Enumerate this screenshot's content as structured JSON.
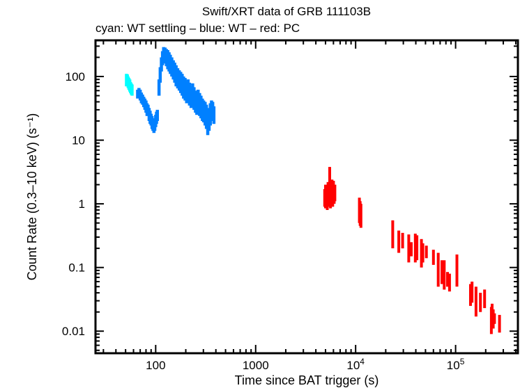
{
  "chart_data": {
    "type": "scatter",
    "title": "Swift/XRT data of GRB 111103B",
    "subtitle": "cyan: WT settling – blue: WT – red: PC",
    "xlabel": "Time since BAT trigger (s)",
    "ylabel": "Count Rate (0.3–10 keV) (s⁻¹)",
    "xscale": "log",
    "yscale": "log",
    "xlim": [
      25,
      420000
    ],
    "ylim": [
      0.0045,
      370
    ],
    "grid": false,
    "legend": "none (series described in subtitle)",
    "x_ticks": [
      {
        "value": 100,
        "label": "100"
      },
      {
        "value": 1000,
        "label": "1000"
      },
      {
        "value": 10000,
        "label": "10",
        "sup": "4"
      },
      {
        "value": 100000,
        "label": "10",
        "sup": "5"
      }
    ],
    "y_ticks": [
      {
        "value": 100,
        "label": "100"
      },
      {
        "value": 10,
        "label": "10"
      },
      {
        "value": 1,
        "label": "1"
      },
      {
        "value": 0.1,
        "label": "0.1"
      },
      {
        "value": 0.01,
        "label": "0.01"
      }
    ],
    "series": [
      {
        "name": "WT settling",
        "color": "#00ffff",
        "points": [
          {
            "t": 51,
            "lo": 70,
            "hi": 110
          },
          {
            "t": 52,
            "lo": 72,
            "hi": 108
          },
          {
            "t": 53,
            "lo": 66,
            "hi": 100
          },
          {
            "t": 54,
            "lo": 62,
            "hi": 95
          },
          {
            "t": 55,
            "lo": 58,
            "hi": 90
          },
          {
            "t": 56,
            "lo": 55,
            "hi": 82
          },
          {
            "t": 57,
            "lo": 52,
            "hi": 78
          },
          {
            "t": 58,
            "lo": 50,
            "hi": 75
          }
        ]
      },
      {
        "name": "WT",
        "color": "#0080ff",
        "points": [
          {
            "t": 66,
            "lo": 45,
            "hi": 62
          },
          {
            "t": 68,
            "lo": 46,
            "hi": 66
          },
          {
            "t": 70,
            "lo": 42,
            "hi": 62
          },
          {
            "t": 72,
            "lo": 38,
            "hi": 56
          },
          {
            "t": 74,
            "lo": 36,
            "hi": 52
          },
          {
            "t": 76,
            "lo": 33,
            "hi": 48
          },
          {
            "t": 78,
            "lo": 30,
            "hi": 45
          },
          {
            "t": 80,
            "lo": 27,
            "hi": 42
          },
          {
            "t": 82,
            "lo": 24,
            "hi": 38
          },
          {
            "t": 84,
            "lo": 24,
            "hi": 36
          },
          {
            "t": 86,
            "lo": 20,
            "hi": 32
          },
          {
            "t": 88,
            "lo": 18,
            "hi": 29
          },
          {
            "t": 90,
            "lo": 17,
            "hi": 26
          },
          {
            "t": 92,
            "lo": 15,
            "hi": 24
          },
          {
            "t": 94,
            "lo": 14,
            "hi": 22
          },
          {
            "t": 96,
            "lo": 13,
            "hi": 21
          },
          {
            "t": 98,
            "lo": 14,
            "hi": 22
          },
          {
            "t": 100,
            "lo": 16,
            "hi": 25
          },
          {
            "t": 102,
            "lo": 18,
            "hi": 28
          },
          {
            "t": 104,
            "lo": 20,
            "hi": 30
          },
          {
            "t": 108,
            "lo": 50,
            "hi": 90
          },
          {
            "t": 111,
            "lo": 80,
            "hi": 140
          },
          {
            "t": 114,
            "lo": 120,
            "hi": 200
          },
          {
            "t": 117,
            "lo": 150,
            "hi": 250
          },
          {
            "t": 120,
            "lo": 170,
            "hi": 290
          },
          {
            "t": 124,
            "lo": 160,
            "hi": 285
          },
          {
            "t": 128,
            "lo": 145,
            "hi": 270
          },
          {
            "t": 132,
            "lo": 130,
            "hi": 260
          },
          {
            "t": 136,
            "lo": 120,
            "hi": 240
          },
          {
            "t": 140,
            "lo": 110,
            "hi": 220
          },
          {
            "t": 145,
            "lo": 100,
            "hi": 200
          },
          {
            "t": 150,
            "lo": 90,
            "hi": 180
          },
          {
            "t": 155,
            "lo": 80,
            "hi": 165
          },
          {
            "t": 160,
            "lo": 70,
            "hi": 150
          },
          {
            "t": 166,
            "lo": 65,
            "hi": 135
          },
          {
            "t": 172,
            "lo": 60,
            "hi": 125
          },
          {
            "t": 178,
            "lo": 55,
            "hi": 118
          },
          {
            "t": 184,
            "lo": 50,
            "hi": 110
          },
          {
            "t": 190,
            "lo": 45,
            "hi": 100
          },
          {
            "t": 197,
            "lo": 42,
            "hi": 95
          },
          {
            "t": 204,
            "lo": 38,
            "hi": 85
          },
          {
            "t": 211,
            "lo": 40,
            "hi": 90
          },
          {
            "t": 218,
            "lo": 35,
            "hi": 80
          },
          {
            "t": 226,
            "lo": 32,
            "hi": 70
          },
          {
            "t": 234,
            "lo": 35,
            "hi": 78
          },
          {
            "t": 242,
            "lo": 30,
            "hi": 68
          },
          {
            "t": 250,
            "lo": 27,
            "hi": 60
          },
          {
            "t": 258,
            "lo": 25,
            "hi": 58
          },
          {
            "t": 266,
            "lo": 26,
            "hi": 62
          },
          {
            "t": 275,
            "lo": 24,
            "hi": 55
          },
          {
            "t": 284,
            "lo": 22,
            "hi": 50
          },
          {
            "t": 293,
            "lo": 20,
            "hi": 45
          },
          {
            "t": 302,
            "lo": 19,
            "hi": 42
          },
          {
            "t": 312,
            "lo": 17,
            "hi": 40
          },
          {
            "t": 322,
            "lo": 15,
            "hi": 36
          },
          {
            "t": 332,
            "lo": 12,
            "hi": 28
          },
          {
            "t": 342,
            "lo": 14,
            "hi": 32
          },
          {
            "t": 352,
            "lo": 17,
            "hi": 38
          },
          {
            "t": 362,
            "lo": 20,
            "hi": 42
          },
          {
            "t": 372,
            "lo": 22,
            "hi": 40
          },
          {
            "t": 382,
            "lo": 18,
            "hi": 34
          }
        ]
      },
      {
        "name": "PC",
        "color": "#ff0000",
        "points": [
          {
            "t": 4900,
            "lo": 0.9,
            "hi": 1.7
          },
          {
            "t": 5000,
            "lo": 0.85,
            "hi": 2.0
          },
          {
            "t": 5100,
            "lo": 0.95,
            "hi": 1.9
          },
          {
            "t": 5200,
            "lo": 0.8,
            "hi": 1.6
          },
          {
            "t": 5300,
            "lo": 1.0,
            "hi": 2.2
          },
          {
            "t": 5400,
            "lo": 0.9,
            "hi": 1.8
          },
          {
            "t": 5500,
            "lo": 1.2,
            "hi": 3.8
          },
          {
            "t": 5600,
            "lo": 0.85,
            "hi": 1.7
          },
          {
            "t": 5700,
            "lo": 0.95,
            "hi": 2.0
          },
          {
            "t": 5800,
            "lo": 1.0,
            "hi": 2.4
          },
          {
            "t": 5900,
            "lo": 0.9,
            "hi": 1.9
          },
          {
            "t": 6000,
            "lo": 1.1,
            "hi": 2.3
          },
          {
            "t": 6100,
            "lo": 1.0,
            "hi": 1.9
          },
          {
            "t": 6200,
            "lo": 1.1,
            "hi": 2.0
          },
          {
            "t": 10900,
            "lo": 0.5,
            "hi": 1.25
          },
          {
            "t": 11100,
            "lo": 0.45,
            "hi": 1.1
          },
          {
            "t": 11300,
            "lo": 0.42,
            "hi": 1.0
          },
          {
            "t": 23500,
            "lo": 0.2,
            "hi": 0.55
          },
          {
            "t": 27000,
            "lo": 0.17,
            "hi": 0.38
          },
          {
            "t": 29500,
            "lo": 0.2,
            "hi": 0.35
          },
          {
            "t": 34000,
            "lo": 0.12,
            "hi": 0.33
          },
          {
            "t": 36000,
            "lo": 0.15,
            "hi": 0.25
          },
          {
            "t": 39500,
            "lo": 0.12,
            "hi": 0.34
          },
          {
            "t": 41000,
            "lo": 0.13,
            "hi": 0.32
          },
          {
            "t": 45500,
            "lo": 0.1,
            "hi": 0.28
          },
          {
            "t": 47000,
            "lo": 0.12,
            "hi": 0.24
          },
          {
            "t": 51000,
            "lo": 0.14,
            "hi": 0.22
          },
          {
            "t": 60000,
            "lo": 0.11,
            "hi": 0.19
          },
          {
            "t": 67000,
            "lo": 0.05,
            "hi": 0.17
          },
          {
            "t": 73000,
            "lo": 0.055,
            "hi": 0.13
          },
          {
            "t": 77000,
            "lo": 0.045,
            "hi": 0.13
          },
          {
            "t": 83000,
            "lo": 0.05,
            "hi": 0.085
          },
          {
            "t": 87000,
            "lo": 0.042,
            "hi": 0.08
          },
          {
            "t": 103000,
            "lo": 0.05,
            "hi": 0.16
          },
          {
            "t": 141000,
            "lo": 0.025,
            "hi": 0.055
          },
          {
            "t": 146000,
            "lo": 0.028,
            "hi": 0.06
          },
          {
            "t": 160000,
            "lo": 0.017,
            "hi": 0.05
          },
          {
            "t": 177000,
            "lo": 0.02,
            "hi": 0.04
          },
          {
            "t": 195000,
            "lo": 0.023,
            "hi": 0.045
          },
          {
            "t": 228000,
            "lo": 0.009,
            "hi": 0.024
          },
          {
            "t": 232000,
            "lo": 0.012,
            "hi": 0.027
          },
          {
            "t": 238000,
            "lo": 0.011,
            "hi": 0.022
          },
          {
            "t": 245000,
            "lo": 0.013,
            "hi": 0.019
          },
          {
            "t": 275000,
            "lo": 0.0095,
            "hi": 0.018
          }
        ]
      }
    ]
  }
}
